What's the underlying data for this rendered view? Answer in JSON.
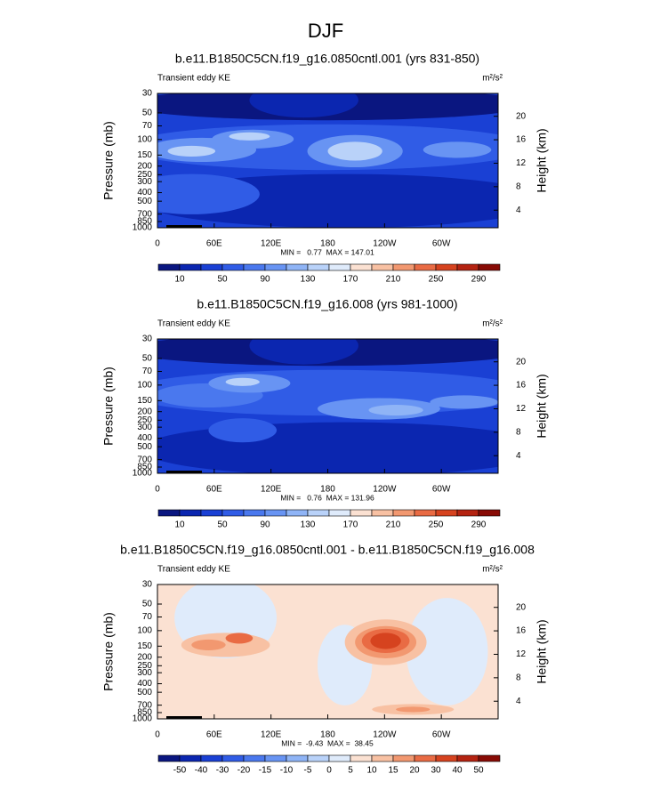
{
  "title": "DJF",
  "panels": [
    {
      "title": "b.e11.B1850C5CN.f19_g16.0850cntl.001 (yrs 831-850)",
      "left_label": "Transient eddy KE",
      "units": "m²/s²",
      "y_label": "Pressure (mb)",
      "y2_label": "Height (km)",
      "log_y": true,
      "ylim": [
        30,
        1000
      ],
      "yticks": [
        30,
        50,
        70,
        100,
        150,
        200,
        250,
        300,
        400,
        500,
        700,
        850,
        1000
      ],
      "y2lim": [
        1,
        23.9
      ],
      "y2ticks": [
        4,
        8,
        12,
        16,
        20
      ],
      "xlim": [
        0,
        360
      ],
      "xticks": [
        0,
        {
          "value": 60,
          "label": "60E"
        },
        {
          "value": 120,
          "label": "120E"
        },
        180,
        {
          "value": 240,
          "label": "120W"
        },
        {
          "value": 300,
          "label": "60W"
        }
      ],
      "stats": "MIN =   0.77  MAX = 147.01",
      "colorbar": {
        "labels": [
          10,
          50,
          90,
          130,
          170,
          210,
          250,
          290
        ],
        "label_step": 2,
        "colors": [
          "#0a1680",
          "#0b26b0",
          "#1a40d4",
          "#305ce6",
          "#4a78ee",
          "#6894f3",
          "#8fb4f6",
          "#b9d2f9",
          "#dfebfb",
          "#fbe1d2",
          "#f8c1a3",
          "#f29870",
          "#e96b44",
          "#d6431f",
          "#b42311",
          "#880b05"
        ]
      }
    },
    {
      "title": "b.e11.B1850C5CN.f19_g16.008 (yrs 981-1000)",
      "left_label": "Transient eddy KE",
      "units": "m²/s²",
      "y_label": "Pressure (mb)",
      "y2_label": "Height (km)",
      "log_y": true,
      "ylim": [
        30,
        1000
      ],
      "yticks": [
        30,
        50,
        70,
        100,
        150,
        200,
        250,
        300,
        400,
        500,
        700,
        850,
        1000
      ],
      "y2lim": [
        1,
        23.9
      ],
      "y2ticks": [
        4,
        8,
        12,
        16,
        20
      ],
      "xlim": [
        0,
        360
      ],
      "xticks": [
        0,
        {
          "value": 60,
          "label": "60E"
        },
        {
          "value": 120,
          "label": "120E"
        },
        180,
        {
          "value": 240,
          "label": "120W"
        },
        {
          "value": 300,
          "label": "60W"
        }
      ],
      "stats": "MIN =   0.76  MAX = 131.96",
      "colorbar": {
        "labels": [
          10,
          50,
          90,
          130,
          170,
          210,
          250,
          290
        ],
        "label_step": 2,
        "colors": [
          "#0a1680",
          "#0b26b0",
          "#1a40d4",
          "#305ce6",
          "#4a78ee",
          "#6894f3",
          "#8fb4f6",
          "#b9d2f9",
          "#dfebfb",
          "#fbe1d2",
          "#f8c1a3",
          "#f29870",
          "#e96b44",
          "#d6431f",
          "#b42311",
          "#880b05"
        ]
      }
    },
    {
      "title": "b.e11.B1850C5CN.f19_g16.0850cntl.001 - b.e11.B1850C5CN.f19_g16.008",
      "left_label": "Transient eddy KE",
      "units": "m²/s²",
      "y_label": "Pressure (mb)",
      "y2_label": "Height (km)",
      "log_y": true,
      "ylim": [
        30,
        1000
      ],
      "yticks": [
        30,
        50,
        70,
        100,
        150,
        200,
        250,
        300,
        400,
        500,
        700,
        850,
        1000
      ],
      "y2lim": [
        1,
        23.9
      ],
      "y2ticks": [
        4,
        8,
        12,
        16,
        20
      ],
      "xlim": [
        0,
        360
      ],
      "xticks": [
        0,
        {
          "value": 60,
          "label": "60E"
        },
        {
          "value": 120,
          "label": "120E"
        },
        180,
        {
          "value": 240,
          "label": "120W"
        },
        {
          "value": 300,
          "label": "60W"
        }
      ],
      "stats": "MIN =  -9.43  MAX =  38.45",
      "colorbar": {
        "labels": [
          -50,
          -40,
          -30,
          -20,
          -15,
          -10,
          -5,
          0,
          5,
          10,
          15,
          20,
          30,
          40,
          50
        ],
        "label_step": 1,
        "colors": [
          "#0a1680",
          "#0b26b0",
          "#1a40d4",
          "#305ce6",
          "#4a78ee",
          "#6894f3",
          "#8fb4f6",
          "#b9d2f9",
          "#dfebfb",
          "#fbe1d2",
          "#f8c1a3",
          "#f29870",
          "#e96b44",
          "#d6431f",
          "#b42311",
          "#880b05"
        ]
      }
    }
  ]
}
